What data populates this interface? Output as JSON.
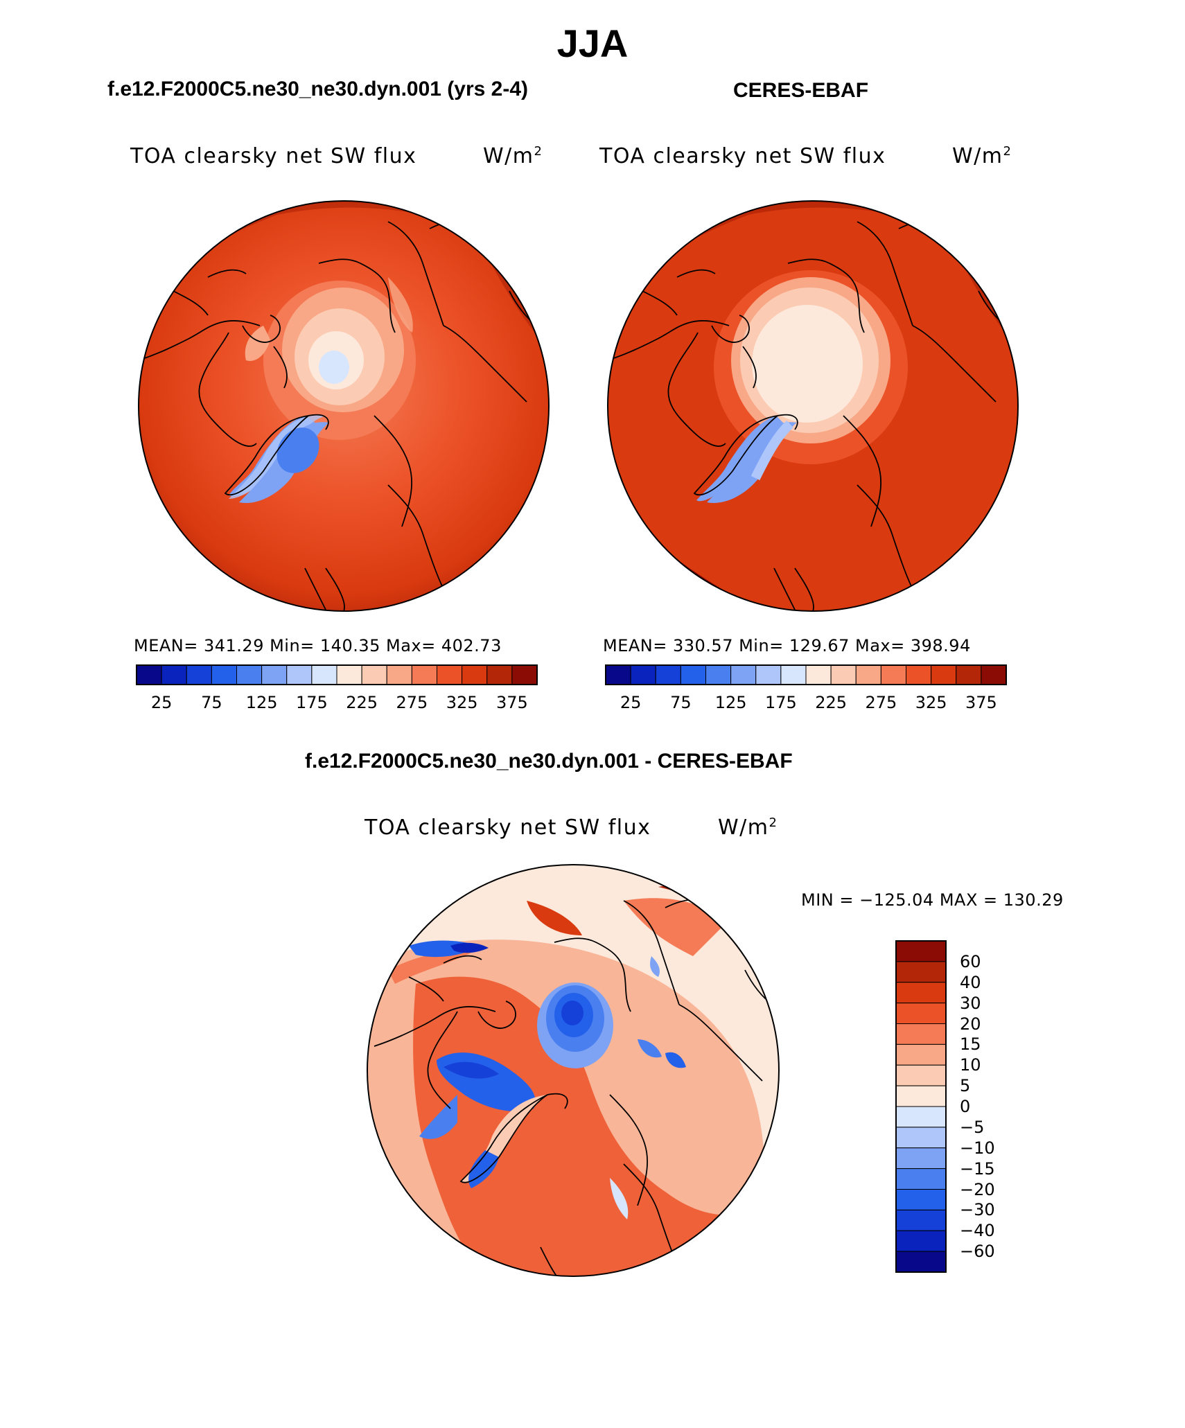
{
  "page": {
    "season": "JJA",
    "model_title": "f.e12.F2000C5.ne30_ne30.dyn.001 (yrs 2-4)",
    "obs_title": "CERES-EBAF",
    "diff_title": "f.e12.F2000C5.ne30_ne30.dyn.001 - CERES-EBAF"
  },
  "panels": {
    "model": {
      "variable": "TOA clearsky net SW flux",
      "units_base": "W/m",
      "units_exp": "2",
      "stats": "MEAN= 341.29   Min= 140.35   Max= 402.73"
    },
    "obs": {
      "variable": "TOA clearsky net SW flux",
      "units_base": "W/m",
      "units_exp": "2",
      "stats": "MEAN= 330.57   Min= 129.67   Max= 398.94"
    },
    "diff": {
      "variable": "TOA clearsky net SW flux",
      "units_base": "W/m",
      "units_exp": "2",
      "stats": "MIN = −125.04 MAX = 130.29"
    }
  },
  "colorbar_abs": {
    "colors": [
      "#08088a",
      "#0a23bd",
      "#1541d8",
      "#2461ea",
      "#4a7ff0",
      "#7ea3f5",
      "#aec6fa",
      "#d7e6fd",
      "#fde9dc",
      "#fbcbb3",
      "#f8a886",
      "#f47b55",
      "#ec5228",
      "#d93a0f",
      "#b32608",
      "#8a0c05"
    ],
    "tick_labels": [
      "25",
      "75",
      "125",
      "175",
      "225",
      "275",
      "325",
      "375"
    ]
  },
  "colorbar_diff": {
    "colors": [
      "#8a0c05",
      "#b32608",
      "#d93a0f",
      "#ec5228",
      "#f47b55",
      "#f8a886",
      "#fbcbb3",
      "#fde9dc",
      "#d7e6fd",
      "#aec6fa",
      "#7ea3f5",
      "#4a7ff0",
      "#2461ea",
      "#1541d8",
      "#0a23bd",
      "#08088a"
    ],
    "tick_labels": [
      "60",
      "40",
      "30",
      "20",
      "15",
      "10",
      "5",
      "0",
      "−5",
      "−10",
      "−15",
      "−20",
      "−30",
      "−40",
      "−60"
    ]
  }
}
